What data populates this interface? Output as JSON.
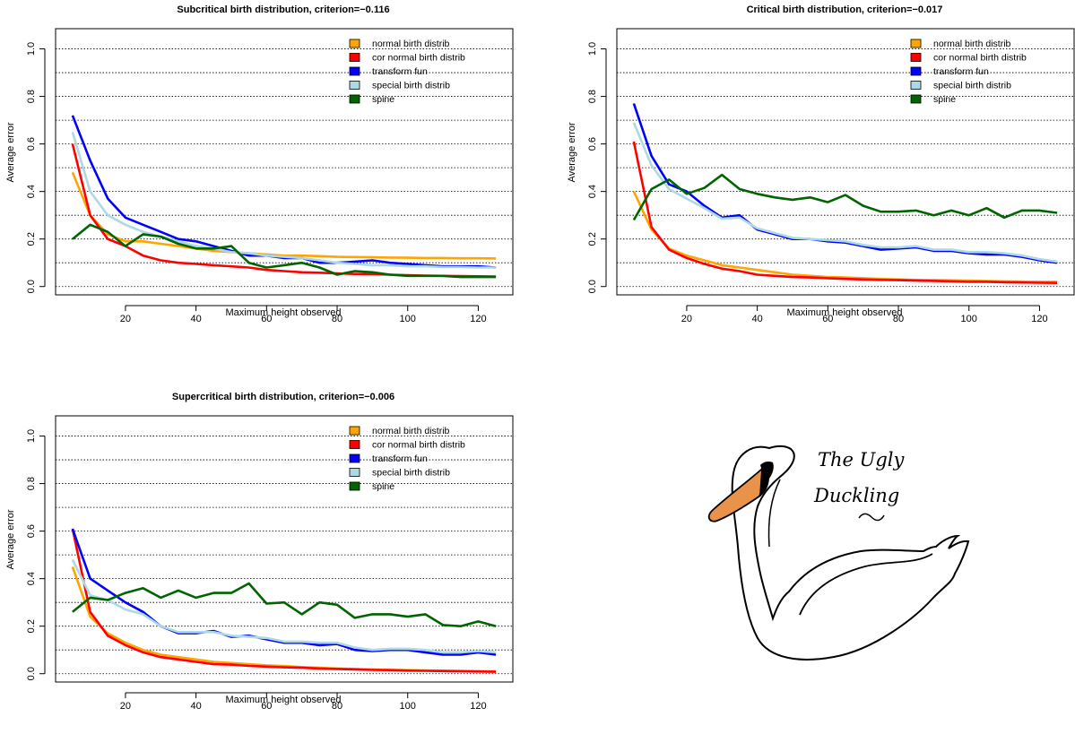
{
  "chart_data": [
    {
      "type": "line",
      "title": "Subcritical birth distribution, criterion=−0.116",
      "xlabel": "Maximum height observed",
      "ylabel": "Average error",
      "xlim": [
        5,
        125
      ],
      "ylim": [
        0,
        1
      ],
      "x_ticks": [
        "20",
        "40",
        "60",
        "80",
        "100",
        "120"
      ],
      "y_ticks": [
        "0.0",
        "0.2",
        "0.4",
        "0.6",
        "0.8",
        "1.0"
      ],
      "grid": "horizontal dotted at 0.1 steps",
      "legend_position": "top-right",
      "x": [
        5,
        10,
        15,
        20,
        25,
        30,
        35,
        40,
        45,
        50,
        55,
        60,
        65,
        70,
        75,
        80,
        85,
        90,
        95,
        100,
        105,
        110,
        115,
        120,
        125
      ],
      "series": [
        {
          "name": "normal birth distrib",
          "color": "#ffa500",
          "values": [
            0.48,
            0.3,
            0.22,
            0.19,
            0.19,
            0.18,
            0.17,
            0.16,
            0.15,
            0.145,
            0.14,
            0.135,
            0.13,
            0.13,
            0.128,
            0.125,
            0.124,
            0.123,
            0.122,
            0.121,
            0.12,
            0.12,
            0.119,
            0.119,
            0.118
          ]
        },
        {
          "name": "cor normal birth distrib",
          "color": "#ff0000",
          "values": [
            0.6,
            0.3,
            0.2,
            0.17,
            0.13,
            0.11,
            0.1,
            0.095,
            0.09,
            0.085,
            0.08,
            0.07,
            0.065,
            0.06,
            0.058,
            0.055,
            0.053,
            0.052,
            0.05,
            0.048,
            0.046,
            0.045,
            0.044,
            0.043,
            0.042
          ]
        },
        {
          "name": "transform fun",
          "color": "#0000ff",
          "values": [
            0.72,
            0.53,
            0.37,
            0.29,
            0.26,
            0.23,
            0.2,
            0.19,
            0.17,
            0.15,
            0.13,
            0.13,
            0.12,
            0.12,
            0.1,
            0.1,
            0.105,
            0.11,
            0.1,
            0.095,
            0.09,
            0.085,
            0.085,
            0.085,
            0.08
          ]
        },
        {
          "name": "special birth distrib",
          "color": "#add8e6",
          "values": [
            0.65,
            0.4,
            0.3,
            0.26,
            0.23,
            0.21,
            0.19,
            0.17,
            0.16,
            0.145,
            0.14,
            0.13,
            0.125,
            0.12,
            0.11,
            0.1,
            0.095,
            0.09,
            0.09,
            0.085,
            0.085,
            0.082,
            0.082,
            0.08,
            0.08
          ]
        },
        {
          "name": "spine",
          "color": "#006400",
          "values": [
            0.2,
            0.26,
            0.23,
            0.17,
            0.22,
            0.21,
            0.18,
            0.16,
            0.16,
            0.17,
            0.1,
            0.08,
            0.09,
            0.1,
            0.08,
            0.05,
            0.065,
            0.06,
            0.05,
            0.045,
            0.045,
            0.045,
            0.04,
            0.04,
            0.04
          ]
        }
      ]
    },
    {
      "type": "line",
      "title": "Critical birth distribution, criterion=−0.017",
      "xlabel": "Maximum height observed",
      "ylabel": "Average error",
      "xlim": [
        5,
        125
      ],
      "ylim": [
        0,
        1
      ],
      "x_ticks": [
        "20",
        "40",
        "60",
        "80",
        "100",
        "120"
      ],
      "y_ticks": [
        "0.0",
        "0.2",
        "0.4",
        "0.6",
        "0.8",
        "1.0"
      ],
      "grid": "horizontal dotted at 0.1 steps",
      "legend_position": "top-right",
      "x": [
        5,
        10,
        15,
        20,
        25,
        30,
        35,
        40,
        45,
        50,
        55,
        60,
        65,
        70,
        75,
        80,
        85,
        90,
        95,
        100,
        105,
        110,
        115,
        120,
        125
      ],
      "series": [
        {
          "name": "normal birth distrib",
          "color": "#ffa500",
          "values": [
            0.4,
            0.24,
            0.16,
            0.13,
            0.11,
            0.09,
            0.08,
            0.07,
            0.06,
            0.05,
            0.045,
            0.04,
            0.038,
            0.035,
            0.032,
            0.03,
            0.028,
            0.027,
            0.026,
            0.025,
            0.023,
            0.022,
            0.021,
            0.02,
            0.02
          ]
        },
        {
          "name": "cor normal birth distrib",
          "color": "#ff0000",
          "values": [
            0.61,
            0.25,
            0.155,
            0.12,
            0.095,
            0.075,
            0.065,
            0.05,
            0.045,
            0.04,
            0.038,
            0.035,
            0.032,
            0.03,
            0.028,
            0.027,
            0.025,
            0.024,
            0.022,
            0.02,
            0.02,
            0.018,
            0.017,
            0.016,
            0.015
          ]
        },
        {
          "name": "transform fun",
          "color": "#0000ff",
          "values": [
            0.77,
            0.55,
            0.43,
            0.4,
            0.34,
            0.29,
            0.3,
            0.24,
            0.22,
            0.2,
            0.2,
            0.19,
            0.185,
            0.17,
            0.155,
            0.16,
            0.165,
            0.15,
            0.15,
            0.14,
            0.135,
            0.135,
            0.125,
            0.11,
            0.1
          ]
        },
        {
          "name": "special birth distrib",
          "color": "#add8e6",
          "values": [
            0.69,
            0.51,
            0.41,
            0.37,
            0.33,
            0.285,
            0.29,
            0.245,
            0.225,
            0.205,
            0.2,
            0.195,
            0.19,
            0.175,
            0.165,
            0.165,
            0.17,
            0.155,
            0.155,
            0.145,
            0.145,
            0.14,
            0.13,
            0.115,
            0.105
          ]
        },
        {
          "name": "spine",
          "color": "#006400",
          "values": [
            0.28,
            0.41,
            0.45,
            0.39,
            0.415,
            0.47,
            0.41,
            0.39,
            0.375,
            0.365,
            0.375,
            0.355,
            0.385,
            0.34,
            0.315,
            0.315,
            0.32,
            0.3,
            0.32,
            0.3,
            0.33,
            0.29,
            0.32,
            0.32,
            0.31
          ]
        }
      ]
    },
    {
      "type": "line",
      "title": "Supercritical birth distribution, criterion=−0.006",
      "xlabel": "Maximum height observed",
      "ylabel": "Average error",
      "xlim": [
        5,
        125
      ],
      "ylim": [
        0,
        1
      ],
      "x_ticks": [
        "20",
        "40",
        "60",
        "80",
        "100",
        "120"
      ],
      "y_ticks": [
        "0.0",
        "0.2",
        "0.4",
        "0.6",
        "0.8",
        "1.0"
      ],
      "grid": "horizontal dotted at 0.1 steps",
      "legend_position": "top-right",
      "x": [
        5,
        10,
        15,
        20,
        25,
        30,
        35,
        40,
        45,
        50,
        55,
        60,
        65,
        70,
        75,
        80,
        85,
        90,
        95,
        100,
        105,
        110,
        115,
        120,
        125
      ],
      "series": [
        {
          "name": "normal birth distrib",
          "color": "#ffa500",
          "values": [
            0.45,
            0.24,
            0.17,
            0.13,
            0.1,
            0.08,
            0.07,
            0.06,
            0.05,
            0.045,
            0.04,
            0.035,
            0.032,
            0.028,
            0.025,
            0.022,
            0.02,
            0.018,
            0.016,
            0.015,
            0.014,
            0.013,
            0.012,
            0.011,
            0.01
          ]
        },
        {
          "name": "cor normal birth distrib",
          "color": "#ff0000",
          "values": [
            0.61,
            0.26,
            0.16,
            0.12,
            0.09,
            0.07,
            0.06,
            0.05,
            0.04,
            0.038,
            0.033,
            0.03,
            0.027,
            0.025,
            0.022,
            0.02,
            0.018,
            0.016,
            0.015,
            0.013,
            0.012,
            0.011,
            0.01,
            0.009,
            0.008
          ]
        },
        {
          "name": "transform fun",
          "color": "#0000ff",
          "values": [
            0.61,
            0.4,
            0.35,
            0.3,
            0.26,
            0.2,
            0.17,
            0.17,
            0.18,
            0.155,
            0.16,
            0.145,
            0.13,
            0.13,
            0.12,
            0.125,
            0.1,
            0.095,
            0.1,
            0.1,
            0.09,
            0.08,
            0.08,
            0.09,
            0.08
          ]
        },
        {
          "name": "special birth distrib",
          "color": "#add8e6",
          "values": [
            0.48,
            0.33,
            0.31,
            0.27,
            0.25,
            0.2,
            0.175,
            0.175,
            0.175,
            0.16,
            0.155,
            0.15,
            0.135,
            0.135,
            0.13,
            0.13,
            0.11,
            0.1,
            0.105,
            0.105,
            0.1,
            0.09,
            0.09,
            0.095,
            0.09
          ]
        },
        {
          "name": "spine",
          "color": "#006400",
          "values": [
            0.26,
            0.32,
            0.31,
            0.34,
            0.36,
            0.32,
            0.35,
            0.32,
            0.34,
            0.34,
            0.38,
            0.295,
            0.3,
            0.25,
            0.3,
            0.29,
            0.235,
            0.25,
            0.25,
            0.24,
            0.25,
            0.205,
            0.2,
            0.22,
            0.2
          ]
        }
      ]
    }
  ],
  "doodle": {
    "title_line1": "The Ugly",
    "title_line2": "Duckling",
    "beak_color": "#e8924a"
  }
}
